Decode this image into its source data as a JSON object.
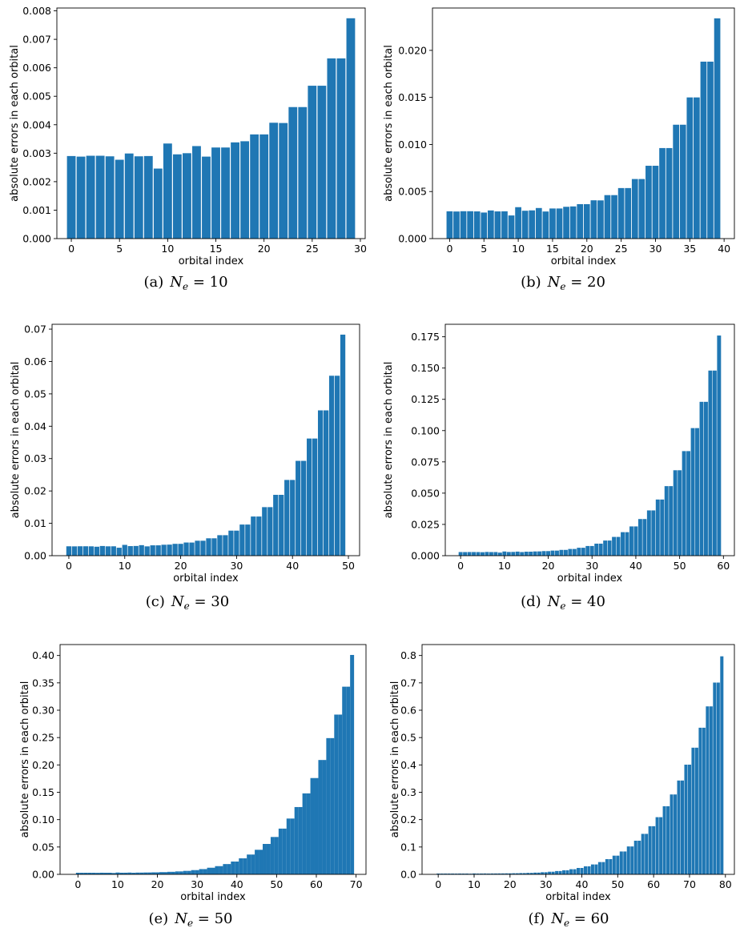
{
  "figure": {
    "xlabel": "orbital index",
    "ylabel": "absolute errors in each orbital"
  },
  "chart_data": [
    {
      "type": "bar",
      "caption": {
        "tag": "(a)",
        "equation": "N_e = 10"
      },
      "xlabel": "orbital index",
      "ylabel": "absolute errors in each orbital",
      "xlim": [
        -1.5,
        30.5
      ],
      "ylim": [
        0,
        0.0081
      ],
      "xticks": [
        0,
        5,
        10,
        15,
        20,
        25,
        30
      ],
      "yticks": [
        0,
        0.001,
        0.002,
        0.003,
        0.004,
        0.005,
        0.006,
        0.007,
        0.008
      ],
      "ytick_labels": [
        "0.000",
        "0.001",
        "0.002",
        "0.003",
        "0.004",
        "0.005",
        "0.006",
        "0.007",
        "0.008"
      ],
      "bar_width": 0.9,
      "color": "#1f77b4",
      "x": [
        0,
        1,
        2,
        3,
        4,
        5,
        6,
        7,
        8,
        9,
        10,
        11,
        12,
        13,
        14,
        15,
        16,
        17,
        18,
        19,
        20,
        21,
        22,
        23,
        24,
        25,
        26,
        27,
        28,
        29
      ],
      "values": [
        0.0029,
        0.00288,
        0.00291,
        0.00291,
        0.00289,
        0.00277,
        0.00299,
        0.00289,
        0.0029,
        0.00246,
        0.00334,
        0.00296,
        0.003,
        0.00325,
        0.00288,
        0.0032,
        0.0032,
        0.00338,
        0.00342,
        0.00366,
        0.00366,
        0.00407,
        0.00406,
        0.00462,
        0.00462,
        0.00537,
        0.00537,
        0.00633,
        0.00633,
        0.00774
      ]
    },
    {
      "type": "bar",
      "caption": {
        "tag": "(b)",
        "equation": "N_e = 20"
      },
      "xlabel": "orbital index",
      "ylabel": "absolute errors in each orbital",
      "xlim": [
        -2.5,
        41.5
      ],
      "ylim": [
        0,
        0.0245
      ],
      "xticks": [
        0,
        5,
        10,
        15,
        20,
        25,
        30,
        35,
        40
      ],
      "yticks": [
        0,
        0.005,
        0.01,
        0.015,
        0.02
      ],
      "ytick_labels": [
        "0.000",
        "0.005",
        "0.010",
        "0.015",
        "0.020"
      ],
      "bar_width": 0.9,
      "color": "#1f77b4",
      "x": [
        0,
        1,
        2,
        3,
        4,
        5,
        6,
        7,
        8,
        9,
        10,
        11,
        12,
        13,
        14,
        15,
        16,
        17,
        18,
        19,
        20,
        21,
        22,
        23,
        24,
        25,
        26,
        27,
        28,
        29,
        30,
        31,
        32,
        33,
        34,
        35,
        36,
        37,
        38,
        39
      ],
      "values": [
        0.0029,
        0.00288,
        0.00291,
        0.00291,
        0.00289,
        0.00277,
        0.00299,
        0.00289,
        0.0029,
        0.00246,
        0.00334,
        0.00296,
        0.003,
        0.00325,
        0.00288,
        0.0032,
        0.0032,
        0.00338,
        0.00342,
        0.00366,
        0.00366,
        0.00407,
        0.00406,
        0.00462,
        0.00462,
        0.00537,
        0.00537,
        0.00633,
        0.00633,
        0.00774,
        0.00774,
        0.00962,
        0.00962,
        0.0121,
        0.0121,
        0.015,
        0.015,
        0.0188,
        0.0188,
        0.0234
      ]
    },
    {
      "type": "bar",
      "caption": {
        "tag": "(c)",
        "equation": "N_e = 30"
      },
      "xlabel": "orbital index",
      "ylabel": "absolute errors in each orbital",
      "xlim": [
        -3,
        52
      ],
      "ylim": [
        0,
        0.0715
      ],
      "xticks": [
        0,
        10,
        20,
        30,
        40,
        50
      ],
      "yticks": [
        0,
        0.01,
        0.02,
        0.03,
        0.04,
        0.05,
        0.06,
        0.07
      ],
      "ytick_labels": [
        "0.00",
        "0.01",
        "0.02",
        "0.03",
        "0.04",
        "0.05",
        "0.06",
        "0.07"
      ],
      "bar_width": 0.9,
      "color": "#1f77b4",
      "x": [
        0,
        1,
        2,
        3,
        4,
        5,
        6,
        7,
        8,
        9,
        10,
        11,
        12,
        13,
        14,
        15,
        16,
        17,
        18,
        19,
        20,
        21,
        22,
        23,
        24,
        25,
        26,
        27,
        28,
        29,
        30,
        31,
        32,
        33,
        34,
        35,
        36,
        37,
        38,
        39,
        40,
        41,
        42,
        43,
        44,
        45,
        46,
        47,
        48,
        49
      ],
      "values": [
        0.0029,
        0.00288,
        0.00291,
        0.00291,
        0.00289,
        0.00277,
        0.00299,
        0.00289,
        0.0029,
        0.00246,
        0.00334,
        0.00296,
        0.003,
        0.00325,
        0.00288,
        0.0032,
        0.0032,
        0.00338,
        0.00342,
        0.00366,
        0.00366,
        0.00407,
        0.00406,
        0.00462,
        0.00462,
        0.00537,
        0.00537,
        0.00633,
        0.00633,
        0.00774,
        0.00774,
        0.00962,
        0.00962,
        0.0121,
        0.0121,
        0.015,
        0.015,
        0.0188,
        0.0188,
        0.0234,
        0.0234,
        0.0293,
        0.0293,
        0.0362,
        0.0362,
        0.0449,
        0.0449,
        0.0556,
        0.0556,
        0.0683
      ]
    },
    {
      "type": "bar",
      "caption": {
        "tag": "(d)",
        "equation": "N_e = 40"
      },
      "xlabel": "orbital index",
      "ylabel": "absolute errors in each orbital",
      "xlim": [
        -3.5,
        62.5
      ],
      "ylim": [
        0,
        0.185
      ],
      "xticks": [
        0,
        10,
        20,
        30,
        40,
        50,
        60
      ],
      "yticks": [
        0,
        0.025,
        0.05,
        0.075,
        0.1,
        0.125,
        0.15,
        0.175
      ],
      "ytick_labels": [
        "0.000",
        "0.025",
        "0.050",
        "0.075",
        "0.100",
        "0.125",
        "0.150",
        "0.175"
      ],
      "bar_width": 0.9,
      "color": "#1f77b4",
      "x": [
        0,
        1,
        2,
        3,
        4,
        5,
        6,
        7,
        8,
        9,
        10,
        11,
        12,
        13,
        14,
        15,
        16,
        17,
        18,
        19,
        20,
        21,
        22,
        23,
        24,
        25,
        26,
        27,
        28,
        29,
        30,
        31,
        32,
        33,
        34,
        35,
        36,
        37,
        38,
        39,
        40,
        41,
        42,
        43,
        44,
        45,
        46,
        47,
        48,
        49,
        50,
        51,
        52,
        53,
        54,
        55,
        56,
        57,
        58,
        59
      ],
      "values": [
        0.0029,
        0.00288,
        0.00291,
        0.00291,
        0.00289,
        0.00277,
        0.00299,
        0.00289,
        0.0029,
        0.00246,
        0.00334,
        0.00296,
        0.003,
        0.00325,
        0.00288,
        0.0032,
        0.0032,
        0.00338,
        0.00342,
        0.00366,
        0.00366,
        0.00407,
        0.00406,
        0.00462,
        0.00462,
        0.00537,
        0.00537,
        0.00633,
        0.00633,
        0.00774,
        0.00774,
        0.00962,
        0.00962,
        0.0121,
        0.0121,
        0.015,
        0.015,
        0.0188,
        0.0188,
        0.0234,
        0.0234,
        0.0293,
        0.0293,
        0.0362,
        0.0362,
        0.0449,
        0.0449,
        0.0556,
        0.0556,
        0.0683,
        0.0683,
        0.0836,
        0.0836,
        0.102,
        0.102,
        0.123,
        0.123,
        0.148,
        0.148,
        0.176
      ]
    },
    {
      "type": "bar",
      "caption": {
        "tag": "(e)",
        "equation": "N_e = 50"
      },
      "xlabel": "orbital index",
      "ylabel": "absolute errors in each orbital",
      "xlim": [
        -4.5,
        72.5
      ],
      "ylim": [
        0,
        0.42
      ],
      "xticks": [
        0,
        10,
        20,
        30,
        40,
        50,
        60,
        70
      ],
      "yticks": [
        0,
        0.05,
        0.1,
        0.15,
        0.2,
        0.25,
        0.3,
        0.35,
        0.4
      ],
      "ytick_labels": [
        "0.00",
        "0.05",
        "0.10",
        "0.15",
        "0.20",
        "0.25",
        "0.30",
        "0.35",
        "0.40"
      ],
      "bar_width": 1.0,
      "color": "#1f77b4",
      "x": [
        0,
        1,
        2,
        3,
        4,
        5,
        6,
        7,
        8,
        9,
        10,
        11,
        12,
        13,
        14,
        15,
        16,
        17,
        18,
        19,
        20,
        21,
        22,
        23,
        24,
        25,
        26,
        27,
        28,
        29,
        30,
        31,
        32,
        33,
        34,
        35,
        36,
        37,
        38,
        39,
        40,
        41,
        42,
        43,
        44,
        45,
        46,
        47,
        48,
        49,
        50,
        51,
        52,
        53,
        54,
        55,
        56,
        57,
        58,
        59,
        60,
        61,
        62,
        63,
        64,
        65,
        66,
        67,
        68,
        69
      ],
      "values": [
        0.0029,
        0.00288,
        0.00291,
        0.00291,
        0.00289,
        0.00277,
        0.00299,
        0.00289,
        0.0029,
        0.00246,
        0.00334,
        0.00296,
        0.003,
        0.00325,
        0.00288,
        0.0032,
        0.0032,
        0.00338,
        0.00342,
        0.00366,
        0.00366,
        0.00407,
        0.00406,
        0.00462,
        0.00462,
        0.00537,
        0.00537,
        0.00633,
        0.00633,
        0.00774,
        0.00774,
        0.00962,
        0.00962,
        0.0121,
        0.0121,
        0.015,
        0.015,
        0.0188,
        0.0188,
        0.0234,
        0.0234,
        0.0293,
        0.0293,
        0.0362,
        0.0362,
        0.0449,
        0.0449,
        0.0556,
        0.0556,
        0.0683,
        0.0683,
        0.0836,
        0.0836,
        0.102,
        0.102,
        0.123,
        0.123,
        0.148,
        0.148,
        0.176,
        0.176,
        0.209,
        0.209,
        0.249,
        0.249,
        0.292,
        0.292,
        0.343,
        0.343,
        0.401
      ]
    },
    {
      "type": "bar",
      "caption": {
        "tag": "(f)",
        "equation": "N_e = 60"
      },
      "xlabel": "orbital index",
      "ylabel": "absolute errors in each orbital",
      "xlim": [
        -4.5,
        82.5
      ],
      "ylim": [
        0,
        0.84
      ],
      "xticks": [
        0,
        10,
        20,
        30,
        40,
        50,
        60,
        70,
        80
      ],
      "yticks": [
        0,
        0.1,
        0.2,
        0.3,
        0.4,
        0.5,
        0.6,
        0.7,
        0.8
      ],
      "ytick_labels": [
        "0.0",
        "0.1",
        "0.2",
        "0.3",
        "0.4",
        "0.5",
        "0.6",
        "0.7",
        "0.8"
      ],
      "bar_width": 0.9,
      "color": "#1f77b4",
      "x": [
        0,
        1,
        2,
        3,
        4,
        5,
        6,
        7,
        8,
        9,
        10,
        11,
        12,
        13,
        14,
        15,
        16,
        17,
        18,
        19,
        20,
        21,
        22,
        23,
        24,
        25,
        26,
        27,
        28,
        29,
        30,
        31,
        32,
        33,
        34,
        35,
        36,
        37,
        38,
        39,
        40,
        41,
        42,
        43,
        44,
        45,
        46,
        47,
        48,
        49,
        50,
        51,
        52,
        53,
        54,
        55,
        56,
        57,
        58,
        59,
        60,
        61,
        62,
        63,
        64,
        65,
        66,
        67,
        68,
        69,
        70,
        71,
        72,
        73,
        74,
        75,
        76,
        77,
        78,
        79
      ],
      "values": [
        0.0029,
        0.00288,
        0.00291,
        0.00291,
        0.00289,
        0.00277,
        0.00299,
        0.00289,
        0.0029,
        0.00246,
        0.00334,
        0.00296,
        0.003,
        0.00325,
        0.00288,
        0.0032,
        0.0032,
        0.00338,
        0.00342,
        0.00366,
        0.00366,
        0.00407,
        0.00406,
        0.00462,
        0.00462,
        0.00537,
        0.00537,
        0.00633,
        0.00633,
        0.00774,
        0.00774,
        0.00962,
        0.00962,
        0.0121,
        0.0121,
        0.015,
        0.015,
        0.0188,
        0.0188,
        0.0234,
        0.0234,
        0.0293,
        0.0293,
        0.0362,
        0.0362,
        0.0449,
        0.0449,
        0.0556,
        0.0556,
        0.0683,
        0.0683,
        0.0836,
        0.0836,
        0.102,
        0.102,
        0.123,
        0.123,
        0.148,
        0.148,
        0.176,
        0.176,
        0.209,
        0.209,
        0.249,
        0.249,
        0.292,
        0.292,
        0.343,
        0.343,
        0.401,
        0.401,
        0.463,
        0.463,
        0.536,
        0.536,
        0.614,
        0.614,
        0.701,
        0.701,
        0.797
      ]
    }
  ]
}
